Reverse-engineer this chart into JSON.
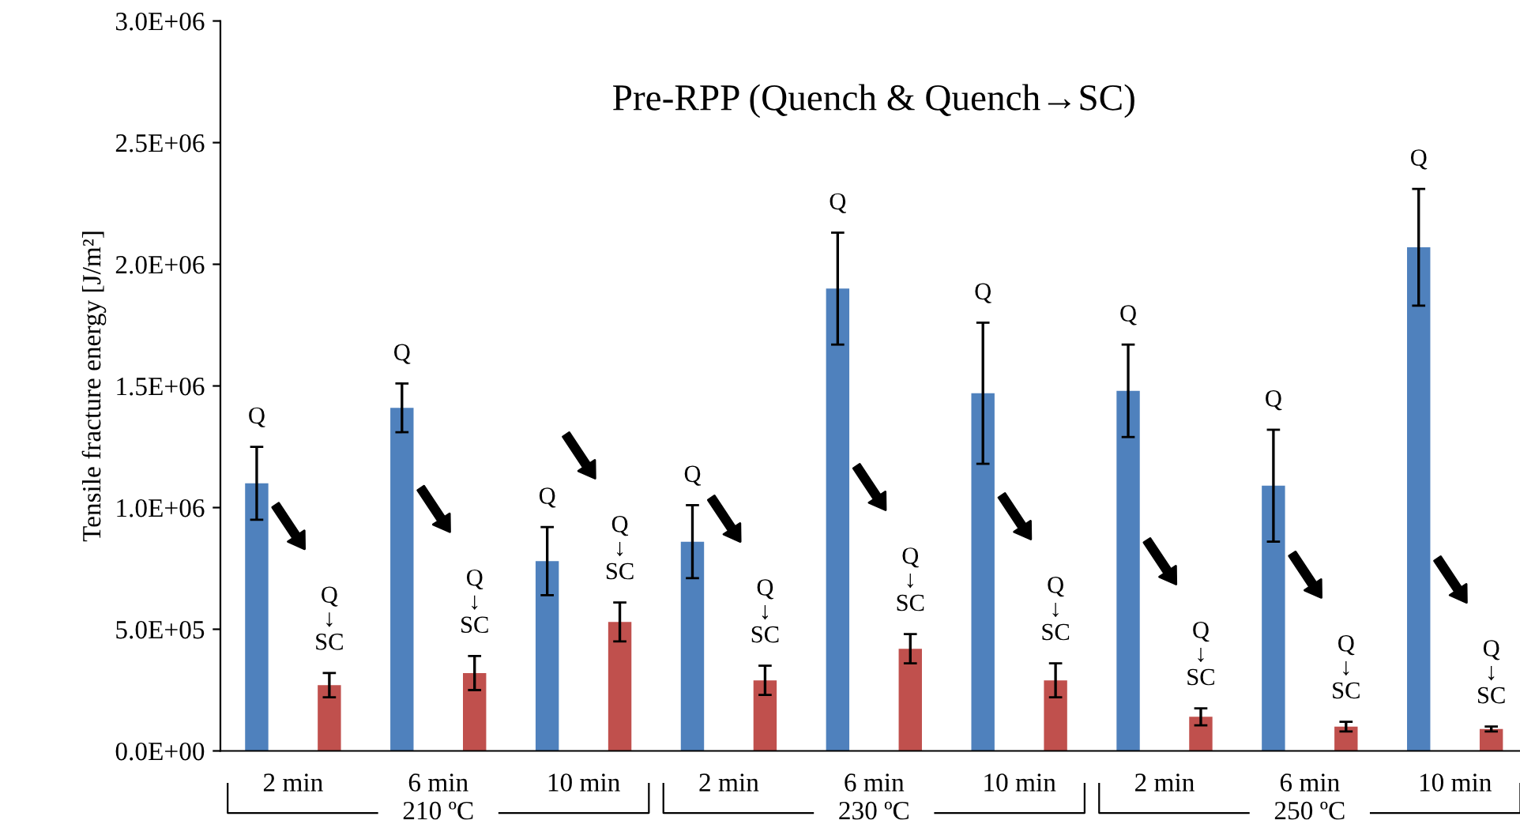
{
  "chart_data": {
    "type": "bar",
    "title": "Pre-RPP (Quench & Quench→SC)",
    "ylabel": "Tensile fracture energy [J/m²]",
    "categories": [
      "2 min",
      "6 min",
      "10 min",
      "2 min",
      "6 min",
      "10 min",
      "2 min",
      "6 min",
      "10 min"
    ],
    "series": [
      {
        "name": "Q",
        "color": "#4f81bd",
        "values": [
          1100000,
          1410000,
          780000,
          860000,
          1900000,
          1470000,
          1480000,
          1090000,
          2070000
        ],
        "errors": [
          150000,
          100000,
          140000,
          150000,
          230000,
          290000,
          190000,
          230000,
          240000
        ]
      },
      {
        "name": "Q\n↓\nSC",
        "color": "#c0504d",
        "values": [
          270000,
          320000,
          530000,
          290000,
          420000,
          290000,
          140000,
          100000,
          90000
        ],
        "errors": [
          50000,
          70000,
          80000,
          60000,
          60000,
          70000,
          35000,
          20000,
          10000
        ]
      }
    ],
    "annotations": [
      "210 ºC",
      "230 ºC",
      "250 ºC"
    ],
    "ylim": [
      0,
      3000000
    ],
    "yticks": [
      {
        "value": 0,
        "label": "0.0E+00"
      },
      {
        "value": 500000,
        "label": "5.0E+05"
      },
      {
        "value": 1000000,
        "label": "1.0E+06"
      },
      {
        "value": 1500000,
        "label": "1.5E+06"
      },
      {
        "value": 2000000,
        "label": "2.0E+06"
      },
      {
        "value": 2500000,
        "label": "2.5E+06"
      },
      {
        "value": 3000000,
        "label": "3.0E+06"
      }
    ],
    "grid": false,
    "legend": false
  }
}
